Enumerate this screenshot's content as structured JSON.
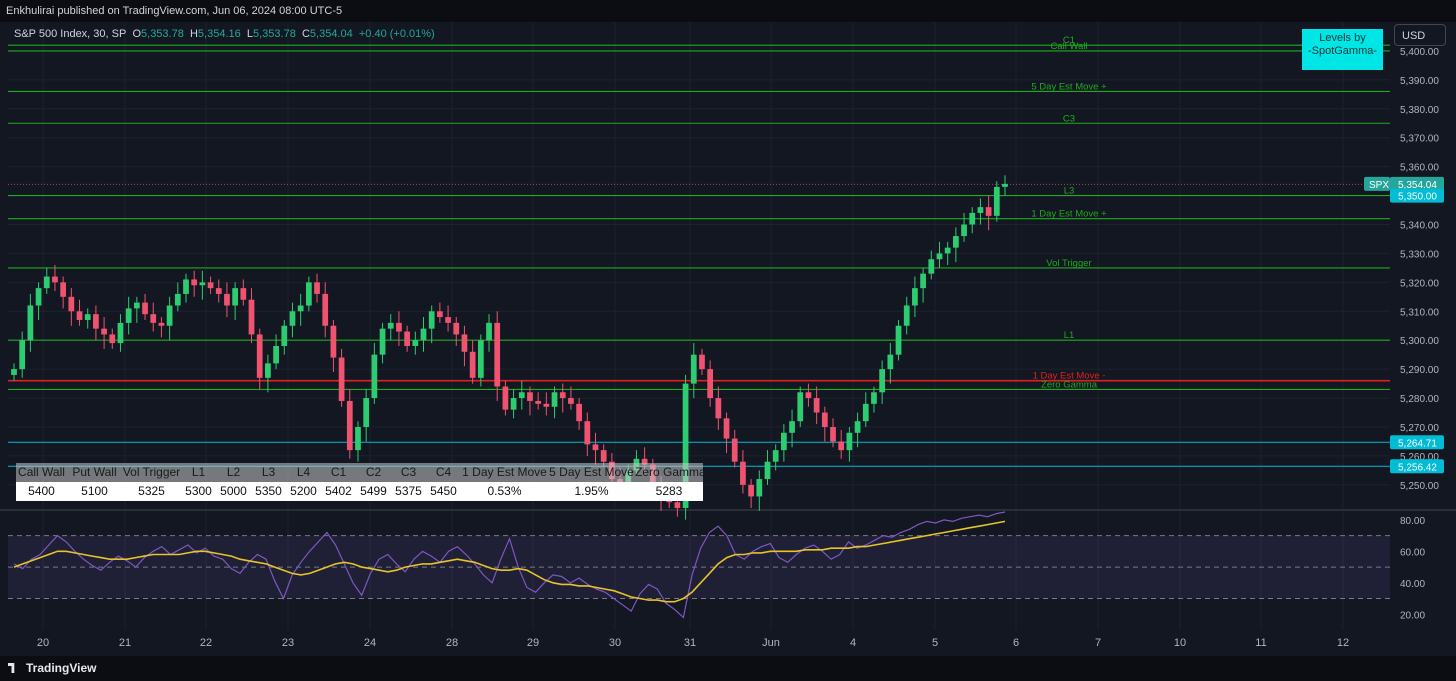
{
  "publication": "Enkhulirai published on TradingView.com, Jun 06, 2024 08:00 UTC-5",
  "symbol": {
    "name": "S&P 500 Index, 30, SP",
    "o_label": "O",
    "o": "5,353.78",
    "h_label": "H",
    "h": "5,354.16",
    "l_label": "L",
    "l": "5,353.78",
    "c_label": "C",
    "c": "5,354.04",
    "change": "+0.40 (+0.01%)"
  },
  "currency_button": "USD",
  "levels_box": {
    "line1": "Levels by",
    "line2": "-SpotGamma-"
  },
  "footer_brand": "TradingView",
  "levels_table": {
    "headers": [
      "Call Wall",
      "Put Wall",
      "Vol Trigger",
      "L1",
      "L2",
      "L3",
      "L4",
      "C1",
      "C2",
      "C3",
      "C4",
      "1 Day Est Move",
      "5 Day Est Move",
      "Zero Gamma"
    ],
    "values": [
      "5400",
      "5100",
      "5325",
      "5300",
      "5000",
      "5350",
      "5200",
      "5402",
      "5499",
      "5375",
      "5450",
      "0.53%",
      "1.95%",
      "5283"
    ]
  },
  "colors": {
    "background": "#131722",
    "up": "#26a69a",
    "up_bright": "#2ecc71",
    "down": "#ef5370",
    "level_green": "#1faa1f",
    "level_red": "#e0201e",
    "cyan": "#00bcd4",
    "rsi": "#7e57c2",
    "rsi_ma": "#e6c42a"
  },
  "chart_data": [
    {
      "type": "candlestick",
      "title": "S&P 500 Index, 30, SP",
      "ylabel": "",
      "ylim": [
        5242,
        5410
      ],
      "y_ticks": [
        "5,400.00",
        "5,390.00",
        "5,380.00",
        "5,370.00",
        "5,360.00",
        "5,350.00",
        "5,340.00",
        "5,330.00",
        "5,320.00",
        "5,310.00",
        "5,300.00",
        "5,290.00",
        "5,280.00",
        "5,270.00",
        "5,260.00",
        "5,250.00"
      ],
      "x_ticks": [
        "20",
        "21",
        "22",
        "23",
        "24",
        "28",
        "29",
        "30",
        "31",
        "Jun",
        "4",
        "5",
        "6",
        "7",
        "10",
        "11",
        "12"
      ],
      "last_price": "5,354.04",
      "last_price_label": "SPX",
      "price_labels": [
        "5,350.00",
        "5,264.71",
        "5,256.42"
      ],
      "levels": [
        {
          "name": "C1",
          "value": 5402,
          "color": "green"
        },
        {
          "name": "Call Wall",
          "value": 5400,
          "color": "green"
        },
        {
          "name": "5 Day Est Move +",
          "value": 5386,
          "color": "green"
        },
        {
          "name": "C3",
          "value": 5375,
          "color": "green"
        },
        {
          "name": "L3",
          "value": 5350,
          "color": "green"
        },
        {
          "name": "1 Day Est Move +",
          "value": 5342,
          "color": "green"
        },
        {
          "name": "Vol Trigger",
          "value": 5325,
          "color": "green"
        },
        {
          "name": "L1",
          "value": 5300,
          "color": "green"
        },
        {
          "name": "1 Day Est Move -",
          "value": 5286,
          "color": "red"
        },
        {
          "name": "Zero Gamma",
          "value": 5283,
          "color": "green"
        }
      ],
      "cyan_levels": [
        5264.71,
        5256.42
      ],
      "candle_closes": [
        5290,
        5300,
        5312,
        5318,
        5322,
        5320,
        5315,
        5310,
        5307,
        5309,
        5304,
        5302,
        5299,
        5306,
        5311,
        5313,
        5309,
        5306,
        5305,
        5312,
        5316,
        5321,
        5319,
        5320,
        5318,
        5316,
        5312,
        5318,
        5314,
        5302,
        5287,
        5292,
        5298,
        5305,
        5310,
        5312,
        5320,
        5316,
        5305,
        5294,
        5279,
        5262,
        5270,
        5280,
        5295,
        5304,
        5306,
        5303,
        5298,
        5300,
        5304,
        5310,
        5308,
        5306,
        5302,
        5296,
        5287,
        5300,
        5306,
        5284,
        5276,
        5280,
        5282,
        5279,
        5278,
        5277,
        5282,
        5280,
        5278,
        5272,
        5264,
        5262,
        5258,
        5252,
        5250,
        5255,
        5259,
        5257,
        5250,
        5246,
        5244,
        5242,
        5285,
        5295,
        5290,
        5280,
        5273,
        5266,
        5258,
        5250,
        5246,
        5252,
        5258,
        5262,
        5268,
        5272,
        5282,
        5280,
        5275,
        5270,
        5265,
        5262,
        5268,
        5272,
        5278,
        5282,
        5290,
        5295,
        5305,
        5312,
        5318,
        5323,
        5328,
        5330,
        5332,
        5336,
        5340,
        5344,
        5346,
        5343,
        5353,
        5354.04
      ]
    },
    {
      "type": "line",
      "title": "RSI",
      "ylim": [
        10,
        85
      ],
      "y_ticks": [
        "80.00",
        "60.00",
        "40.00",
        "20.00"
      ],
      "bands": [
        70,
        50,
        30
      ],
      "series": [
        {
          "name": "",
          "values": [
            52,
            49,
            55,
            58,
            64,
            70,
            66,
            60,
            55,
            51,
            48,
            53,
            57,
            54,
            50,
            56,
            60,
            63,
            58,
            61,
            64,
            59,
            62,
            57,
            55,
            49,
            46,
            53,
            58,
            55,
            41,
            30,
            45,
            53,
            60,
            66,
            72,
            64,
            52,
            40,
            32,
            46,
            55,
            58,
            52,
            47,
            55,
            60,
            57,
            53,
            60,
            63,
            58,
            52,
            45,
            40,
            55,
            68,
            50,
            37,
            34,
            40,
            45,
            44,
            40,
            43,
            39,
            36,
            34,
            30,
            26,
            22,
            33,
            39,
            36,
            27,
            23,
            18,
            45,
            62,
            72,
            76,
            70,
            58,
            55,
            60,
            63,
            65,
            56,
            53,
            58,
            62,
            64,
            60,
            55,
            58,
            66,
            62,
            64,
            67,
            70,
            69,
            72,
            74,
            77,
            79,
            78,
            80,
            79,
            81,
            82,
            83,
            82,
            84,
            85
          ]
        },
        {
          "name": "",
          "values": [
            50,
            52,
            54,
            56,
            58,
            60,
            60,
            59,
            58,
            57,
            56,
            55,
            55,
            55,
            56,
            57,
            58,
            58,
            58,
            58,
            59,
            60,
            60,
            59,
            58,
            57,
            55,
            54,
            53,
            52,
            50,
            48,
            46,
            45,
            46,
            48,
            50,
            52,
            53,
            52,
            50,
            49,
            48,
            47,
            48,
            50,
            51,
            52,
            52,
            53,
            54,
            55,
            54,
            53,
            51,
            49,
            48,
            48,
            49,
            48,
            45,
            42,
            40,
            39,
            39,
            38,
            38,
            37,
            36,
            35,
            33,
            31,
            30,
            29,
            29,
            28,
            28,
            30,
            34,
            40,
            46,
            52,
            56,
            58,
            58,
            59,
            59,
            60,
            60,
            60,
            60,
            61,
            61,
            61,
            62,
            62,
            62,
            63,
            63,
            64,
            65,
            66,
            67,
            68,
            69,
            70,
            71,
            72,
            73,
            74,
            75,
            76,
            77,
            78,
            79
          ]
        }
      ]
    }
  ]
}
